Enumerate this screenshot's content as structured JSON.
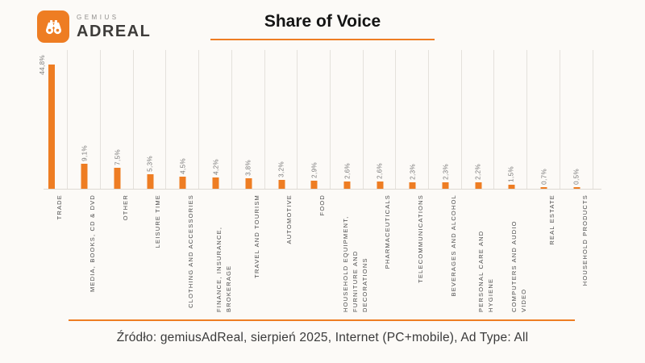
{
  "header": {
    "logo": {
      "top": "GEMIUS",
      "bottom": "ADREAL",
      "icon": "binoculars-icon"
    },
    "title": "Share of Voice"
  },
  "chart_data": {
    "type": "bar",
    "title": "Share of Voice",
    "categories": [
      "TRADE",
      "MEDIA, BOOKS, CD & DVD",
      "OTHER",
      "LEISURE TIME",
      "CLOTHING AND ACCESSORIES",
      "FINANCE, INSURANCE, BROKERAGE",
      "TRAVEL AND TOURISM",
      "AUTOMOTIVE",
      "FOOD",
      "HOUSEHOLD EQUIPMENT, FURNITURE AND DECORATIONS",
      "PHARMACEUTICALS",
      "TELECOMMUNICATIONS",
      "BEVERAGES AND ALCOHOL",
      "PERSONAL CARE AND HYGIENE",
      "COMPUTERS AND AUDIO VIDEO",
      "REAL ESTATE",
      "HOUSEHOLD PRODUCTS"
    ],
    "values": [
      44.8,
      9.1,
      7.5,
      5.3,
      4.5,
      4.2,
      3.8,
      3.2,
      2.9,
      2.6,
      2.6,
      2.3,
      2.3,
      2.2,
      1.5,
      0.7,
      0.5
    ],
    "value_labels": [
      "44,8%",
      "9,1%",
      "7,5%",
      "5,3%",
      "4,5%",
      "4,2%",
      "3,8%",
      "3,2%",
      "2,9%",
      "2,6%",
      "2,6%",
      "2,3%",
      "2,3%",
      "2,2%",
      "1,5%",
      "0,7%",
      "0,5%"
    ],
    "xlabel": "",
    "ylabel": "",
    "ylim": [
      0,
      50
    ],
    "bar_color": "#ee7d23",
    "grid": "vertical category gridlines",
    "legend": "none",
    "label_rotation": "vertical bottom-to-top"
  },
  "footer": {
    "source": "Źródło: gemiusAdReal, sierpień 2025, Internet (PC+mobile), Ad Type: All"
  },
  "colors": {
    "accent": "#ee7d23",
    "background": "#fcfaf7",
    "label_gray": "#4a4a4a",
    "value_gray": "#7b7b7b"
  }
}
